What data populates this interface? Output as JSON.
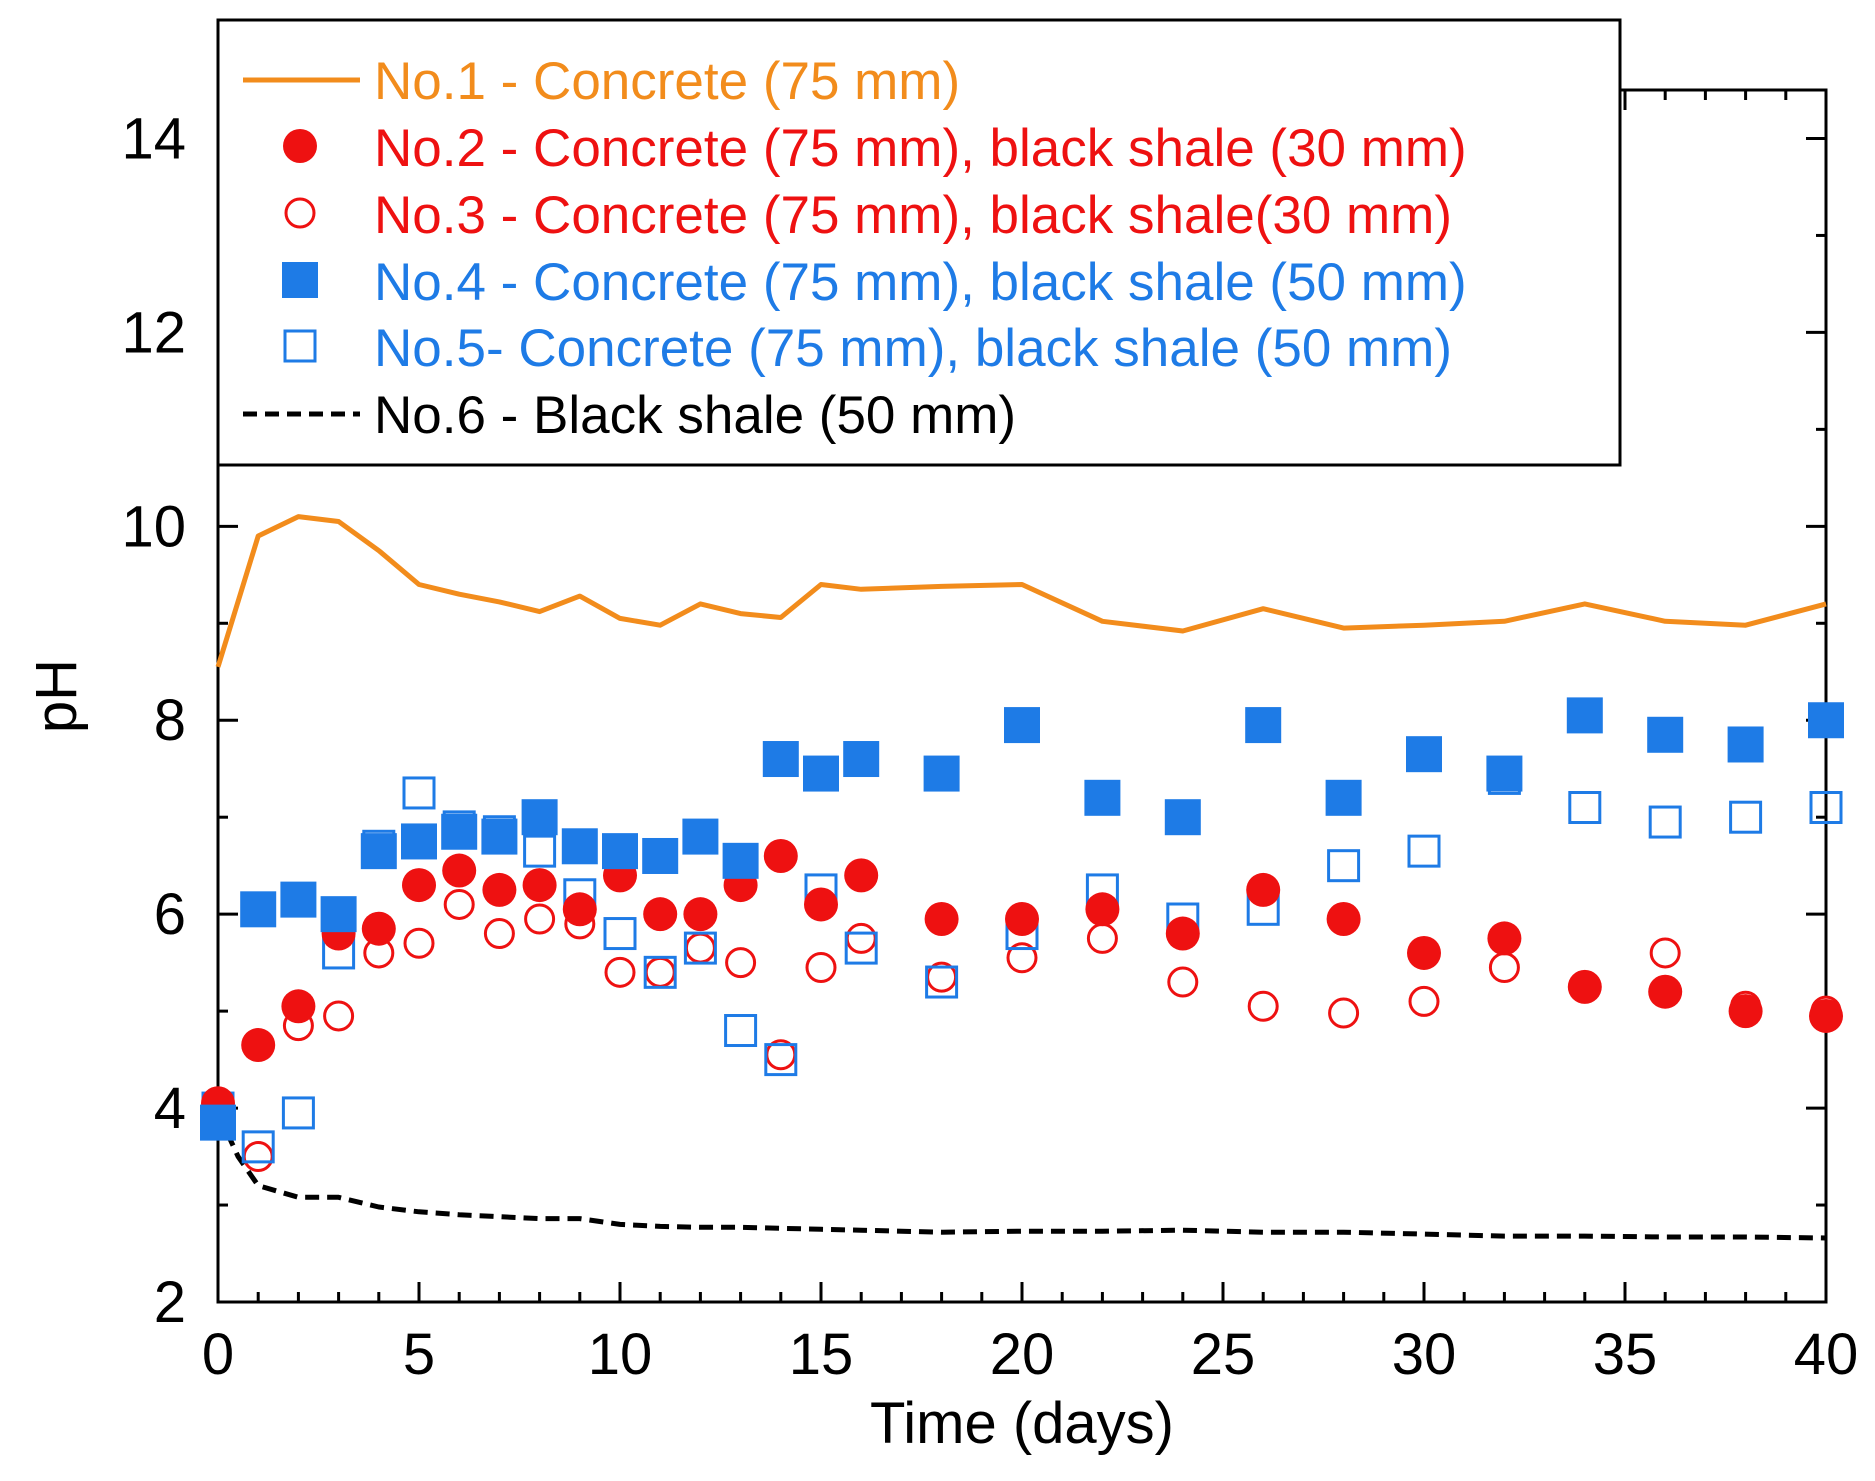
{
  "chart_data": {
    "type": "scatter",
    "title": "",
    "xlabel": "Time (days)",
    "ylabel": "pH",
    "xlim": [
      0,
      40
    ],
    "ylim": [
      2,
      14.5
    ],
    "xticks": [
      0,
      5,
      10,
      15,
      20,
      25,
      30,
      35,
      40
    ],
    "yticks": [
      2,
      4,
      6,
      8,
      10,
      12,
      14
    ],
    "legend_position": "top-left",
    "series": [
      {
        "name": "No.1 - Concrete (75 mm)",
        "color": "#f28c1c",
        "style": "solid-line",
        "x": [
          0,
          1,
          2,
          3,
          4,
          5,
          6,
          7,
          8,
          9,
          10,
          11,
          12,
          13,
          14,
          15,
          16,
          18,
          20,
          22,
          24,
          26,
          28,
          30,
          32,
          34,
          36,
          38,
          40
        ],
        "y": [
          8.55,
          9.9,
          10.1,
          10.05,
          9.75,
          9.4,
          9.3,
          9.22,
          9.12,
          9.28,
          9.05,
          8.98,
          9.2,
          9.1,
          9.06,
          9.4,
          9.35,
          9.38,
          9.4,
          9.02,
          8.92,
          9.15,
          8.95,
          8.98,
          9.02,
          9.2,
          9.02,
          8.98,
          9.2
        ]
      },
      {
        "name": "No.2 - Concrete (75 mm), black shale (30 mm)",
        "color": "#ee1111",
        "style": "filled-circle",
        "x": [
          0,
          1,
          2,
          3,
          4,
          5,
          6,
          7,
          8,
          9,
          10,
          11,
          12,
          13,
          14,
          15,
          16,
          18,
          20,
          22,
          24,
          26,
          28,
          30,
          32,
          34,
          36,
          38,
          40
        ],
        "y": [
          4.05,
          4.65,
          5.05,
          5.8,
          5.85,
          6.3,
          6.45,
          6.25,
          6.3,
          6.05,
          6.4,
          6.0,
          6.0,
          6.3,
          6.6,
          6.1,
          6.4,
          5.95,
          5.95,
          6.05,
          5.8,
          6.25,
          5.95,
          5.6,
          5.75,
          5.25,
          5.2,
          5.0,
          4.95
        ]
      },
      {
        "name": "No.3 - Concrete (75 mm), black shale(30 mm)",
        "color": "#ee1111",
        "style": "open-circle",
        "x": [
          0,
          1,
          2,
          3,
          4,
          5,
          6,
          7,
          8,
          9,
          10,
          11,
          12,
          13,
          14,
          15,
          16,
          18,
          20,
          22,
          24,
          26,
          28,
          30,
          32,
          34,
          36,
          38,
          40
        ],
        "y": [
          3.95,
          3.5,
          4.85,
          4.95,
          5.6,
          5.7,
          6.1,
          5.8,
          5.95,
          5.9,
          5.4,
          5.4,
          5.65,
          5.5,
          4.55,
          5.45,
          5.75,
          5.35,
          5.55,
          5.75,
          5.3,
          5.05,
          4.98,
          5.1,
          5.45,
          5.25,
          5.6,
          5.05,
          5.0
        ]
      },
      {
        "name": "No.4 - Concrete (75 mm), black shale (50 mm)",
        "color": "#1e7be6",
        "style": "filled-square",
        "x": [
          0,
          1,
          2,
          3,
          4,
          5,
          6,
          7,
          8,
          9,
          10,
          11,
          12,
          13,
          14,
          15,
          16,
          18,
          20,
          22,
          24,
          26,
          28,
          30,
          32,
          34,
          36,
          38,
          40
        ],
        "y": [
          3.85,
          6.05,
          6.15,
          6.0,
          6.65,
          6.75,
          6.85,
          6.8,
          7.0,
          6.7,
          6.65,
          6.6,
          6.8,
          6.55,
          7.6,
          7.45,
          7.6,
          7.45,
          7.95,
          7.2,
          7.0,
          7.95,
          7.2,
          7.65,
          7.45,
          8.05,
          7.85,
          7.75,
          8.0
        ]
      },
      {
        "name": "No.5- Concrete (75 mm), black shale (50 mm)",
        "color": "#1e7be6",
        "style": "open-square",
        "x": [
          0,
          1,
          2,
          3,
          4,
          5,
          6,
          7,
          8,
          9,
          10,
          11,
          12,
          13,
          14,
          15,
          16,
          18,
          20,
          22,
          24,
          26,
          28,
          30,
          32,
          34,
          36,
          38,
          40
        ],
        "y": [
          4.0,
          3.6,
          3.95,
          5.6,
          6.7,
          7.25,
          6.9,
          6.85,
          6.65,
          6.2,
          5.8,
          5.4,
          5.65,
          4.8,
          4.5,
          6.25,
          5.65,
          5.3,
          5.8,
          6.25,
          5.95,
          6.05,
          6.5,
          6.65,
          7.4,
          7.1,
          6.95,
          7.0,
          7.1
        ]
      },
      {
        "name": "No.6 - Black shale (50 mm)",
        "color": "#000000",
        "style": "dashed-line",
        "x": [
          0,
          0.5,
          1,
          2,
          3,
          4,
          5,
          6,
          7,
          8,
          9,
          10,
          11,
          12,
          13,
          14,
          15,
          16,
          18,
          20,
          22,
          24,
          26,
          28,
          30,
          32,
          34,
          36,
          38,
          40
        ],
        "y": [
          3.95,
          3.5,
          3.2,
          3.08,
          3.08,
          2.98,
          2.93,
          2.9,
          2.88,
          2.86,
          2.86,
          2.8,
          2.78,
          2.77,
          2.77,
          2.76,
          2.75,
          2.74,
          2.72,
          2.73,
          2.73,
          2.74,
          2.72,
          2.72,
          2.7,
          2.68,
          2.68,
          2.67,
          2.67,
          2.66
        ]
      }
    ]
  }
}
